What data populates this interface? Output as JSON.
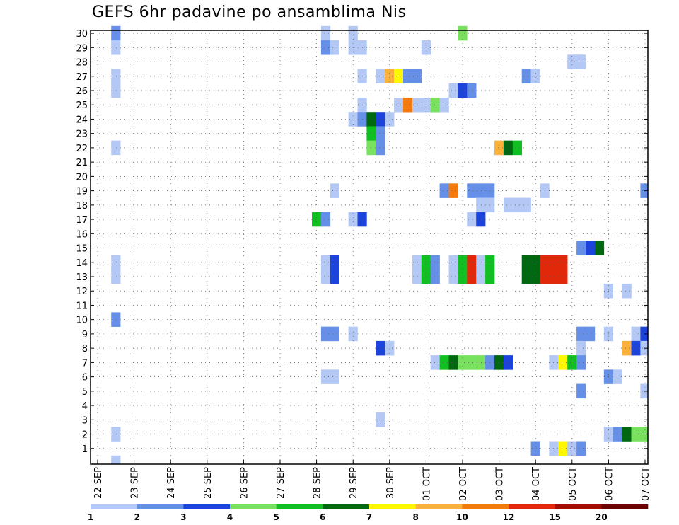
{
  "chart_data": {
    "type": "heatmap",
    "title": "GEFS 6hr padavine po ansamblima Nis",
    "xlabel": "",
    "ylabel": "",
    "x_tick_labels": [
      "22 SEP",
      "23 SEP",
      "24 SEP",
      "25 SEP",
      "26 SEP",
      "27 SEP",
      "28 SEP",
      "29 SEP",
      "30 SEP",
      "01 OCT",
      "02 OCT",
      "03 OCT",
      "04 OCT",
      "05 OCT",
      "06 OCT",
      "07 OCT"
    ],
    "y_ticks": [
      1,
      2,
      3,
      4,
      5,
      6,
      7,
      8,
      9,
      10,
      11,
      12,
      13,
      14,
      15,
      16,
      17,
      18,
      19,
      20,
      21,
      22,
      23,
      24,
      25,
      26,
      27,
      28,
      29,
      30
    ],
    "x_range_days": [
      0,
      15.25
    ],
    "y_range": [
      0,
      30
    ],
    "grid": true,
    "colorbar": {
      "levels": [
        1,
        2,
        3,
        4,
        5,
        6,
        7,
        8,
        10,
        12,
        15,
        20
      ],
      "colors": [
        "#b4c8f5",
        "#6690e8",
        "#1c44dc",
        "#78e25e",
        "#10c020",
        "#006810",
        "#fff700",
        "#fcb23a",
        "#f57a0b",
        "#e0280b",
        "#a40d06",
        "#6e0302"
      ]
    },
    "cells": [
      {
        "m": 30,
        "t": 0.5,
        "c": 1
      },
      {
        "m": 30,
        "t": 6.25,
        "c": 0
      },
      {
        "m": 30,
        "t": 7.0,
        "c": 0
      },
      {
        "m": 30,
        "t": 10.0,
        "c": 3
      },
      {
        "m": 29,
        "t": 0.5,
        "c": 0
      },
      {
        "m": 29,
        "t": 6.25,
        "c": 1
      },
      {
        "m": 29,
        "t": 6.5,
        "c": 0
      },
      {
        "m": 29,
        "t": 7.0,
        "c": 0
      },
      {
        "m": 29,
        "t": 7.25,
        "c": 0
      },
      {
        "m": 29,
        "t": 9.0,
        "c": 0
      },
      {
        "m": 28,
        "t": 13.0,
        "c": 0
      },
      {
        "m": 28,
        "t": 13.25,
        "c": 0
      },
      {
        "m": 27,
        "t": 0.5,
        "c": 0
      },
      {
        "m": 27,
        "t": 7.25,
        "c": 0
      },
      {
        "m": 27,
        "t": 7.75,
        "c": 0
      },
      {
        "m": 27,
        "t": 8.0,
        "c": 7
      },
      {
        "m": 27,
        "t": 8.25,
        "c": 6
      },
      {
        "m": 27,
        "t": 8.5,
        "c": 1
      },
      {
        "m": 27,
        "t": 8.75,
        "c": 1
      },
      {
        "m": 27,
        "t": 11.75,
        "c": 1
      },
      {
        "m": 27,
        "t": 12.0,
        "c": 0
      },
      {
        "m": 26,
        "t": 0.5,
        "c": 0
      },
      {
        "m": 26,
        "t": 9.75,
        "c": 0
      },
      {
        "m": 26,
        "t": 10.0,
        "c": 2
      },
      {
        "m": 26,
        "t": 10.25,
        "c": 1
      },
      {
        "m": 25,
        "t": 7.25,
        "c": 0
      },
      {
        "m": 25,
        "t": 8.25,
        "c": 0
      },
      {
        "m": 25,
        "t": 8.5,
        "c": 8
      },
      {
        "m": 25,
        "t": 8.75,
        "c": 0
      },
      {
        "m": 25,
        "t": 9.0,
        "c": 0
      },
      {
        "m": 25,
        "t": 9.25,
        "c": 3
      },
      {
        "m": 25,
        "t": 9.5,
        "c": 0
      },
      {
        "m": 24,
        "t": 7.0,
        "c": 0
      },
      {
        "m": 24,
        "t": 7.25,
        "c": 1
      },
      {
        "m": 24,
        "t": 7.5,
        "c": 5
      },
      {
        "m": 24,
        "t": 7.75,
        "c": 2
      },
      {
        "m": 24,
        "t": 8.0,
        "c": 0
      },
      {
        "m": 23,
        "t": 7.5,
        "c": 4
      },
      {
        "m": 23,
        "t": 7.75,
        "c": 1
      },
      {
        "m": 22,
        "t": 0.5,
        "c": 0
      },
      {
        "m": 22,
        "t": 7.5,
        "c": 3
      },
      {
        "m": 22,
        "t": 7.75,
        "c": 1
      },
      {
        "m": 22,
        "t": 11.0,
        "c": 7
      },
      {
        "m": 22,
        "t": 11.25,
        "c": 5
      },
      {
        "m": 22,
        "t": 11.5,
        "c": 4
      },
      {
        "m": 19,
        "t": 6.5,
        "c": 0
      },
      {
        "m": 19,
        "t": 9.5,
        "c": 1
      },
      {
        "m": 19,
        "t": 9.75,
        "c": 8
      },
      {
        "m": 19,
        "t": 10.25,
        "c": 1
      },
      {
        "m": 19,
        "t": 10.5,
        "c": 1
      },
      {
        "m": 19,
        "t": 10.75,
        "c": 1
      },
      {
        "m": 19,
        "t": 12.25,
        "c": 0
      },
      {
        "m": 19,
        "t": 15.0,
        "c": 1
      },
      {
        "m": 18,
        "t": 10.5,
        "c": 0
      },
      {
        "m": 18,
        "t": 10.75,
        "c": 0
      },
      {
        "m": 18,
        "t": 11.25,
        "c": 0
      },
      {
        "m": 18,
        "t": 11.5,
        "c": 0
      },
      {
        "m": 18,
        "t": 11.75,
        "c": 0
      },
      {
        "m": 17,
        "t": 6.0,
        "c": 4
      },
      {
        "m": 17,
        "t": 6.25,
        "c": 1
      },
      {
        "m": 17,
        "t": 7.0,
        "c": 0
      },
      {
        "m": 17,
        "t": 7.25,
        "c": 2
      },
      {
        "m": 17,
        "t": 10.25,
        "c": 0
      },
      {
        "m": 17,
        "t": 10.5,
        "c": 2
      },
      {
        "m": 15,
        "t": 13.25,
        "c": 1
      },
      {
        "m": 15,
        "t": 13.5,
        "c": 2
      },
      {
        "m": 15,
        "t": 13.75,
        "c": 5
      },
      {
        "m": 14,
        "t": 0.5,
        "c": 0
      },
      {
        "m": 14,
        "t": 6.25,
        "c": 0
      },
      {
        "m": 14,
        "t": 6.5,
        "c": 2
      },
      {
        "m": 14,
        "t": 8.75,
        "c": 0
      },
      {
        "m": 14,
        "t": 9.0,
        "c": 4
      },
      {
        "m": 14,
        "t": 9.25,
        "c": 1
      },
      {
        "m": 14,
        "t": 9.75,
        "c": 0
      },
      {
        "m": 14,
        "t": 10.0,
        "c": 4
      },
      {
        "m": 14,
        "t": 10.25,
        "c": 9
      },
      {
        "m": 14,
        "t": 10.5,
        "c": 0
      },
      {
        "m": 14,
        "t": 10.75,
        "c": 4
      },
      {
        "m": 14,
        "t": 11.75,
        "c": 5
      },
      {
        "m": 14,
        "t": 12.0,
        "c": 5
      },
      {
        "m": 14,
        "t": 12.25,
        "c": 9
      },
      {
        "m": 14,
        "t": 12.5,
        "c": 9
      },
      {
        "m": 14,
        "t": 12.75,
        "c": 9
      },
      {
        "m": 13,
        "t": 0.5,
        "c": 0
      },
      {
        "m": 13,
        "t": 6.25,
        "c": 0
      },
      {
        "m": 13,
        "t": 6.5,
        "c": 2
      },
      {
        "m": 13,
        "t": 8.75,
        "c": 0
      },
      {
        "m": 13,
        "t": 9.0,
        "c": 4
      },
      {
        "m": 13,
        "t": 9.25,
        "c": 1
      },
      {
        "m": 13,
        "t": 9.75,
        "c": 0
      },
      {
        "m": 13,
        "t": 10.0,
        "c": 4
      },
      {
        "m": 13,
        "t": 10.25,
        "c": 9
      },
      {
        "m": 13,
        "t": 10.5,
        "c": 0
      },
      {
        "m": 13,
        "t": 10.75,
        "c": 4
      },
      {
        "m": 13,
        "t": 11.75,
        "c": 5
      },
      {
        "m": 13,
        "t": 12.0,
        "c": 5
      },
      {
        "m": 13,
        "t": 12.25,
        "c": 9
      },
      {
        "m": 13,
        "t": 12.5,
        "c": 9
      },
      {
        "m": 13,
        "t": 12.75,
        "c": 9
      },
      {
        "m": 12,
        "t": 14.0,
        "c": 0
      },
      {
        "m": 12,
        "t": 14.5,
        "c": 0
      },
      {
        "m": 10,
        "t": 0.5,
        "c": 1
      },
      {
        "m": 9,
        "t": 6.25,
        "c": 1
      },
      {
        "m": 9,
        "t": 6.5,
        "c": 1
      },
      {
        "m": 9,
        "t": 7.0,
        "c": 0
      },
      {
        "m": 9,
        "t": 13.25,
        "c": 1
      },
      {
        "m": 9,
        "t": 13.5,
        "c": 1
      },
      {
        "m": 9,
        "t": 14.0,
        "c": 0
      },
      {
        "m": 9,
        "t": 14.75,
        "c": 0
      },
      {
        "m": 9,
        "t": 15.0,
        "c": 2
      },
      {
        "m": 8,
        "t": 7.75,
        "c": 2
      },
      {
        "m": 8,
        "t": 8.0,
        "c": 0
      },
      {
        "m": 8,
        "t": 13.25,
        "c": 0
      },
      {
        "m": 8,
        "t": 14.5,
        "c": 7
      },
      {
        "m": 8,
        "t": 14.75,
        "c": 2
      },
      {
        "m": 8,
        "t": 15.0,
        "c": 0
      },
      {
        "m": 7,
        "t": 9.25,
        "c": 0
      },
      {
        "m": 7,
        "t": 9.5,
        "c": 4
      },
      {
        "m": 7,
        "t": 9.75,
        "c": 5
      },
      {
        "m": 7,
        "t": 10.0,
        "c": 3
      },
      {
        "m": 7,
        "t": 10.25,
        "c": 3
      },
      {
        "m": 7,
        "t": 10.5,
        "c": 3
      },
      {
        "m": 7,
        "t": 10.75,
        "c": 1
      },
      {
        "m": 7,
        "t": 11.0,
        "c": 5
      },
      {
        "m": 7,
        "t": 11.25,
        "c": 2
      },
      {
        "m": 7,
        "t": 12.5,
        "c": 0
      },
      {
        "m": 7,
        "t": 12.75,
        "c": 6
      },
      {
        "m": 7,
        "t": 13.0,
        "c": 4
      },
      {
        "m": 7,
        "t": 13.25,
        "c": 1
      },
      {
        "m": 6,
        "t": 6.25,
        "c": 0
      },
      {
        "m": 6,
        "t": 6.5,
        "c": 0
      },
      {
        "m": 6,
        "t": 14.0,
        "c": 1
      },
      {
        "m": 6,
        "t": 14.25,
        "c": 0
      },
      {
        "m": 5,
        "t": 13.25,
        "c": 1
      },
      {
        "m": 5,
        "t": 15.0,
        "c": 0
      },
      {
        "m": 3,
        "t": 7.75,
        "c": 0
      },
      {
        "m": 2,
        "t": 0.5,
        "c": 0
      },
      {
        "m": 2,
        "t": 14.0,
        "c": 0
      },
      {
        "m": 2,
        "t": 14.25,
        "c": 1
      },
      {
        "m": 2,
        "t": 14.5,
        "c": 5
      },
      {
        "m": 2,
        "t": 14.75,
        "c": 3
      },
      {
        "m": 2,
        "t": 15.0,
        "c": 3
      },
      {
        "m": 1,
        "t": 12.0,
        "c": 1
      },
      {
        "m": 1,
        "t": 12.5,
        "c": 0
      },
      {
        "m": 1,
        "t": 12.75,
        "c": 6
      },
      {
        "m": 1,
        "t": 13.0,
        "c": 0
      },
      {
        "m": 1,
        "t": 13.25,
        "c": 1
      },
      {
        "m": 0,
        "t": 0.5,
        "c": 0
      }
    ]
  }
}
